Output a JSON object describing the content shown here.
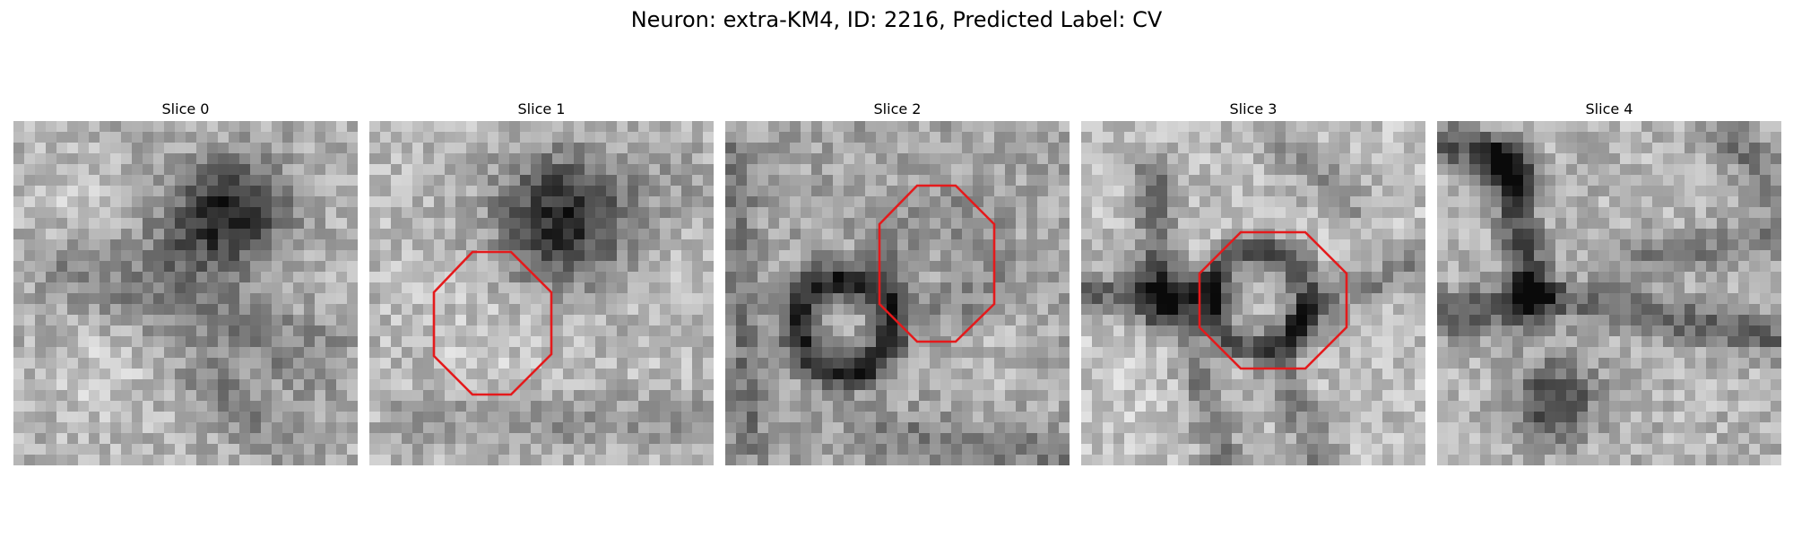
{
  "figure": {
    "title": "Neuron: extra-KM4, ID: 2216, Predicted Label: CV"
  },
  "colors": {
    "background": "#ffffff",
    "marker": "#e41a1c"
  },
  "slices": [
    {
      "label": "Slice 0",
      "image": "grayscale-em-tile",
      "has_marker": false
    },
    {
      "label": "Slice 1",
      "image": "grayscale-em-tile",
      "has_marker": true
    },
    {
      "label": "Slice 2",
      "image": "grayscale-em-tile",
      "has_marker": true
    },
    {
      "label": "Slice 3",
      "image": "grayscale-em-tile",
      "has_marker": true
    },
    {
      "label": "Slice 4",
      "image": "grayscale-em-tile",
      "has_marker": false
    }
  ]
}
